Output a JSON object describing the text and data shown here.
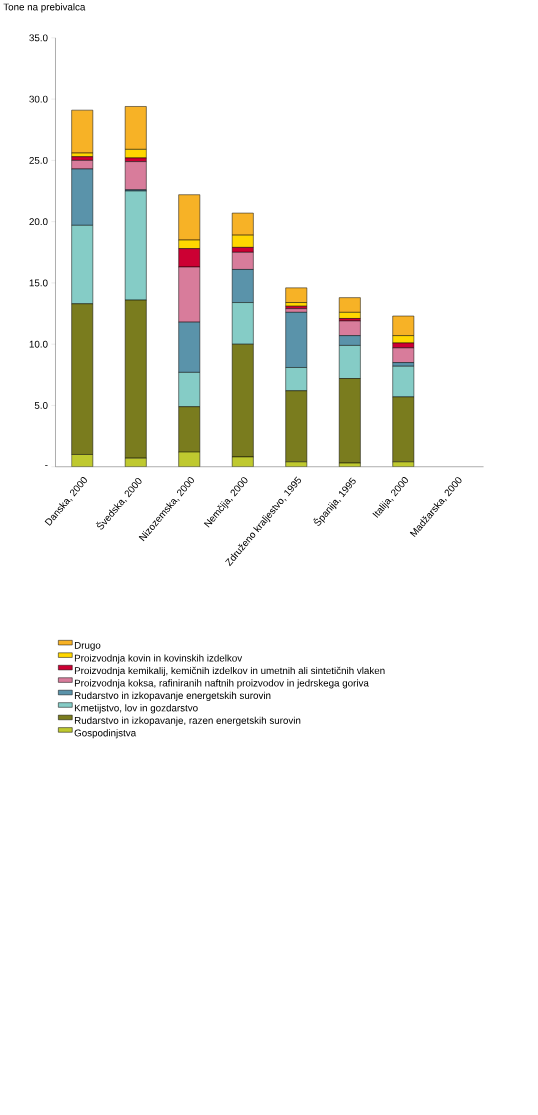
{
  "chart_data": {
    "type": "bar",
    "stacked": true,
    "ylabel": "Tone na prebivalca",
    "categories": [
      "Danska, 2000",
      "Švedska, 2000",
      "Nizozemska, 2000",
      "Nemčija, 2000",
      "Združeno kraljestvo, 1995",
      "Španija, 1995",
      "Italija, 2000",
      "Madžarska, 2000"
    ],
    "series": [
      {
        "name": "Gospodinjstva",
        "color": "#bfc92f",
        "values": [
          1.0,
          0.7,
          1.2,
          0.8,
          0.4,
          0.3,
          0.4,
          null
        ]
      },
      {
        "name": "Rudarstvo in izkopavanje, razen energetskih surovin",
        "color": "#7a7c1e",
        "values": [
          12.3,
          12.9,
          3.7,
          9.2,
          5.8,
          6.9,
          5.3,
          null
        ]
      },
      {
        "name": "Kmetijstvo, lov in gozdarstvo",
        "color": "#85ccc6",
        "values": [
          6.4,
          8.9,
          2.8,
          3.4,
          1.9,
          2.7,
          2.5,
          null
        ]
      },
      {
        "name": "Rudarstvo in izkopavanje energetskih surovin",
        "color": "#5a93aa",
        "values": [
          4.6,
          0.1,
          4.1,
          2.7,
          4.5,
          0.8,
          0.3,
          null
        ]
      },
      {
        "name": "Proizvodnja koksa, rafiniranih naftnih proizvodov in jedrskega goriva",
        "color": "#d87c9b",
        "values": [
          0.7,
          2.3,
          4.5,
          1.4,
          0.3,
          1.2,
          1.2,
          null
        ]
      },
      {
        "name": "Proizvodnja kemikalij, kemičnih izdelkov in umetnih ali sintetičnih vlaken",
        "color": "#cc0033",
        "values": [
          0.3,
          0.3,
          1.5,
          0.4,
          0.2,
          0.2,
          0.4,
          null
        ]
      },
      {
        "name": "Proizvodnja kovin in kovinskih izdelkov",
        "color": "#ffd700",
        "values": [
          0.3,
          0.7,
          0.7,
          1.0,
          0.3,
          0.5,
          0.6,
          null
        ]
      },
      {
        "name": "Drugo",
        "color": "#f7b226",
        "values": [
          3.5,
          3.5,
          3.7,
          1.8,
          1.2,
          1.2,
          1.6,
          null
        ]
      }
    ],
    "ylim": [
      0,
      35
    ],
    "yticks": [
      {
        "value": 0,
        "label": "-"
      },
      {
        "value": 5,
        "label": "5.0"
      },
      {
        "value": 10,
        "label": "10.0"
      },
      {
        "value": 15,
        "label": "15.0"
      },
      {
        "value": 20,
        "label": "20.0"
      },
      {
        "value": 25,
        "label": "25.0"
      },
      {
        "value": 30,
        "label": "30.0"
      },
      {
        "value": 35,
        "label": "35.0"
      }
    ],
    "grid": false,
    "legend": "bottom"
  }
}
